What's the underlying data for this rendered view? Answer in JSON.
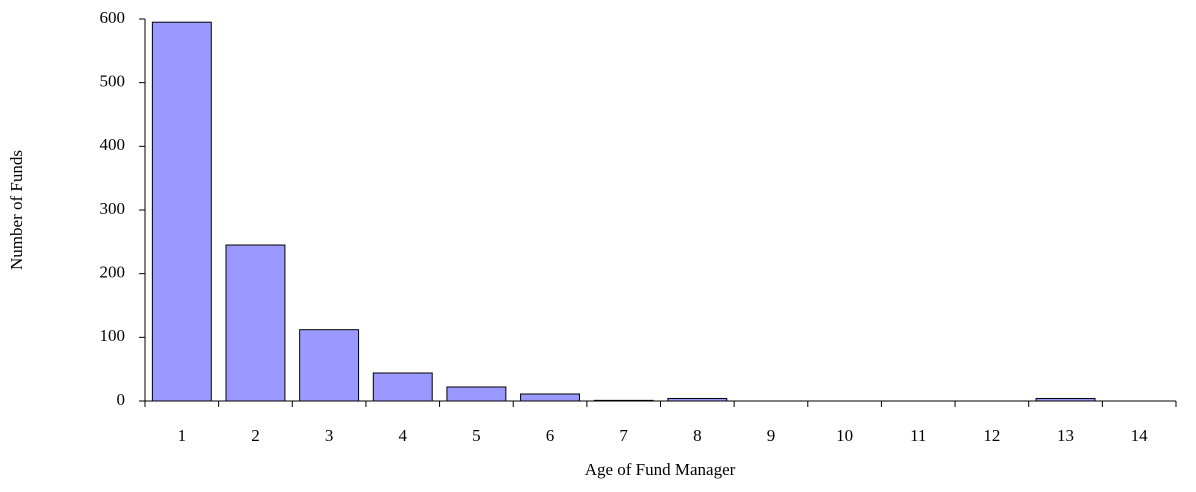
{
  "chart_data": {
    "type": "bar",
    "x_label": "Age of Fund Manager",
    "y_label": "Number of Funds",
    "categories": [
      "1",
      "2",
      "3",
      "4",
      "5",
      "6",
      "7",
      "8",
      "9",
      "10",
      "11",
      "12",
      "13",
      "14"
    ],
    "values": [
      595,
      245,
      112,
      44,
      22,
      11,
      1,
      4,
      0,
      0,
      0,
      0,
      4,
      0
    ],
    "color": "#9999ff",
    "ylim": [
      0,
      600
    ],
    "yticks": [
      0,
      100,
      200,
      300,
      400,
      500,
      600
    ],
    "grid": false
  }
}
